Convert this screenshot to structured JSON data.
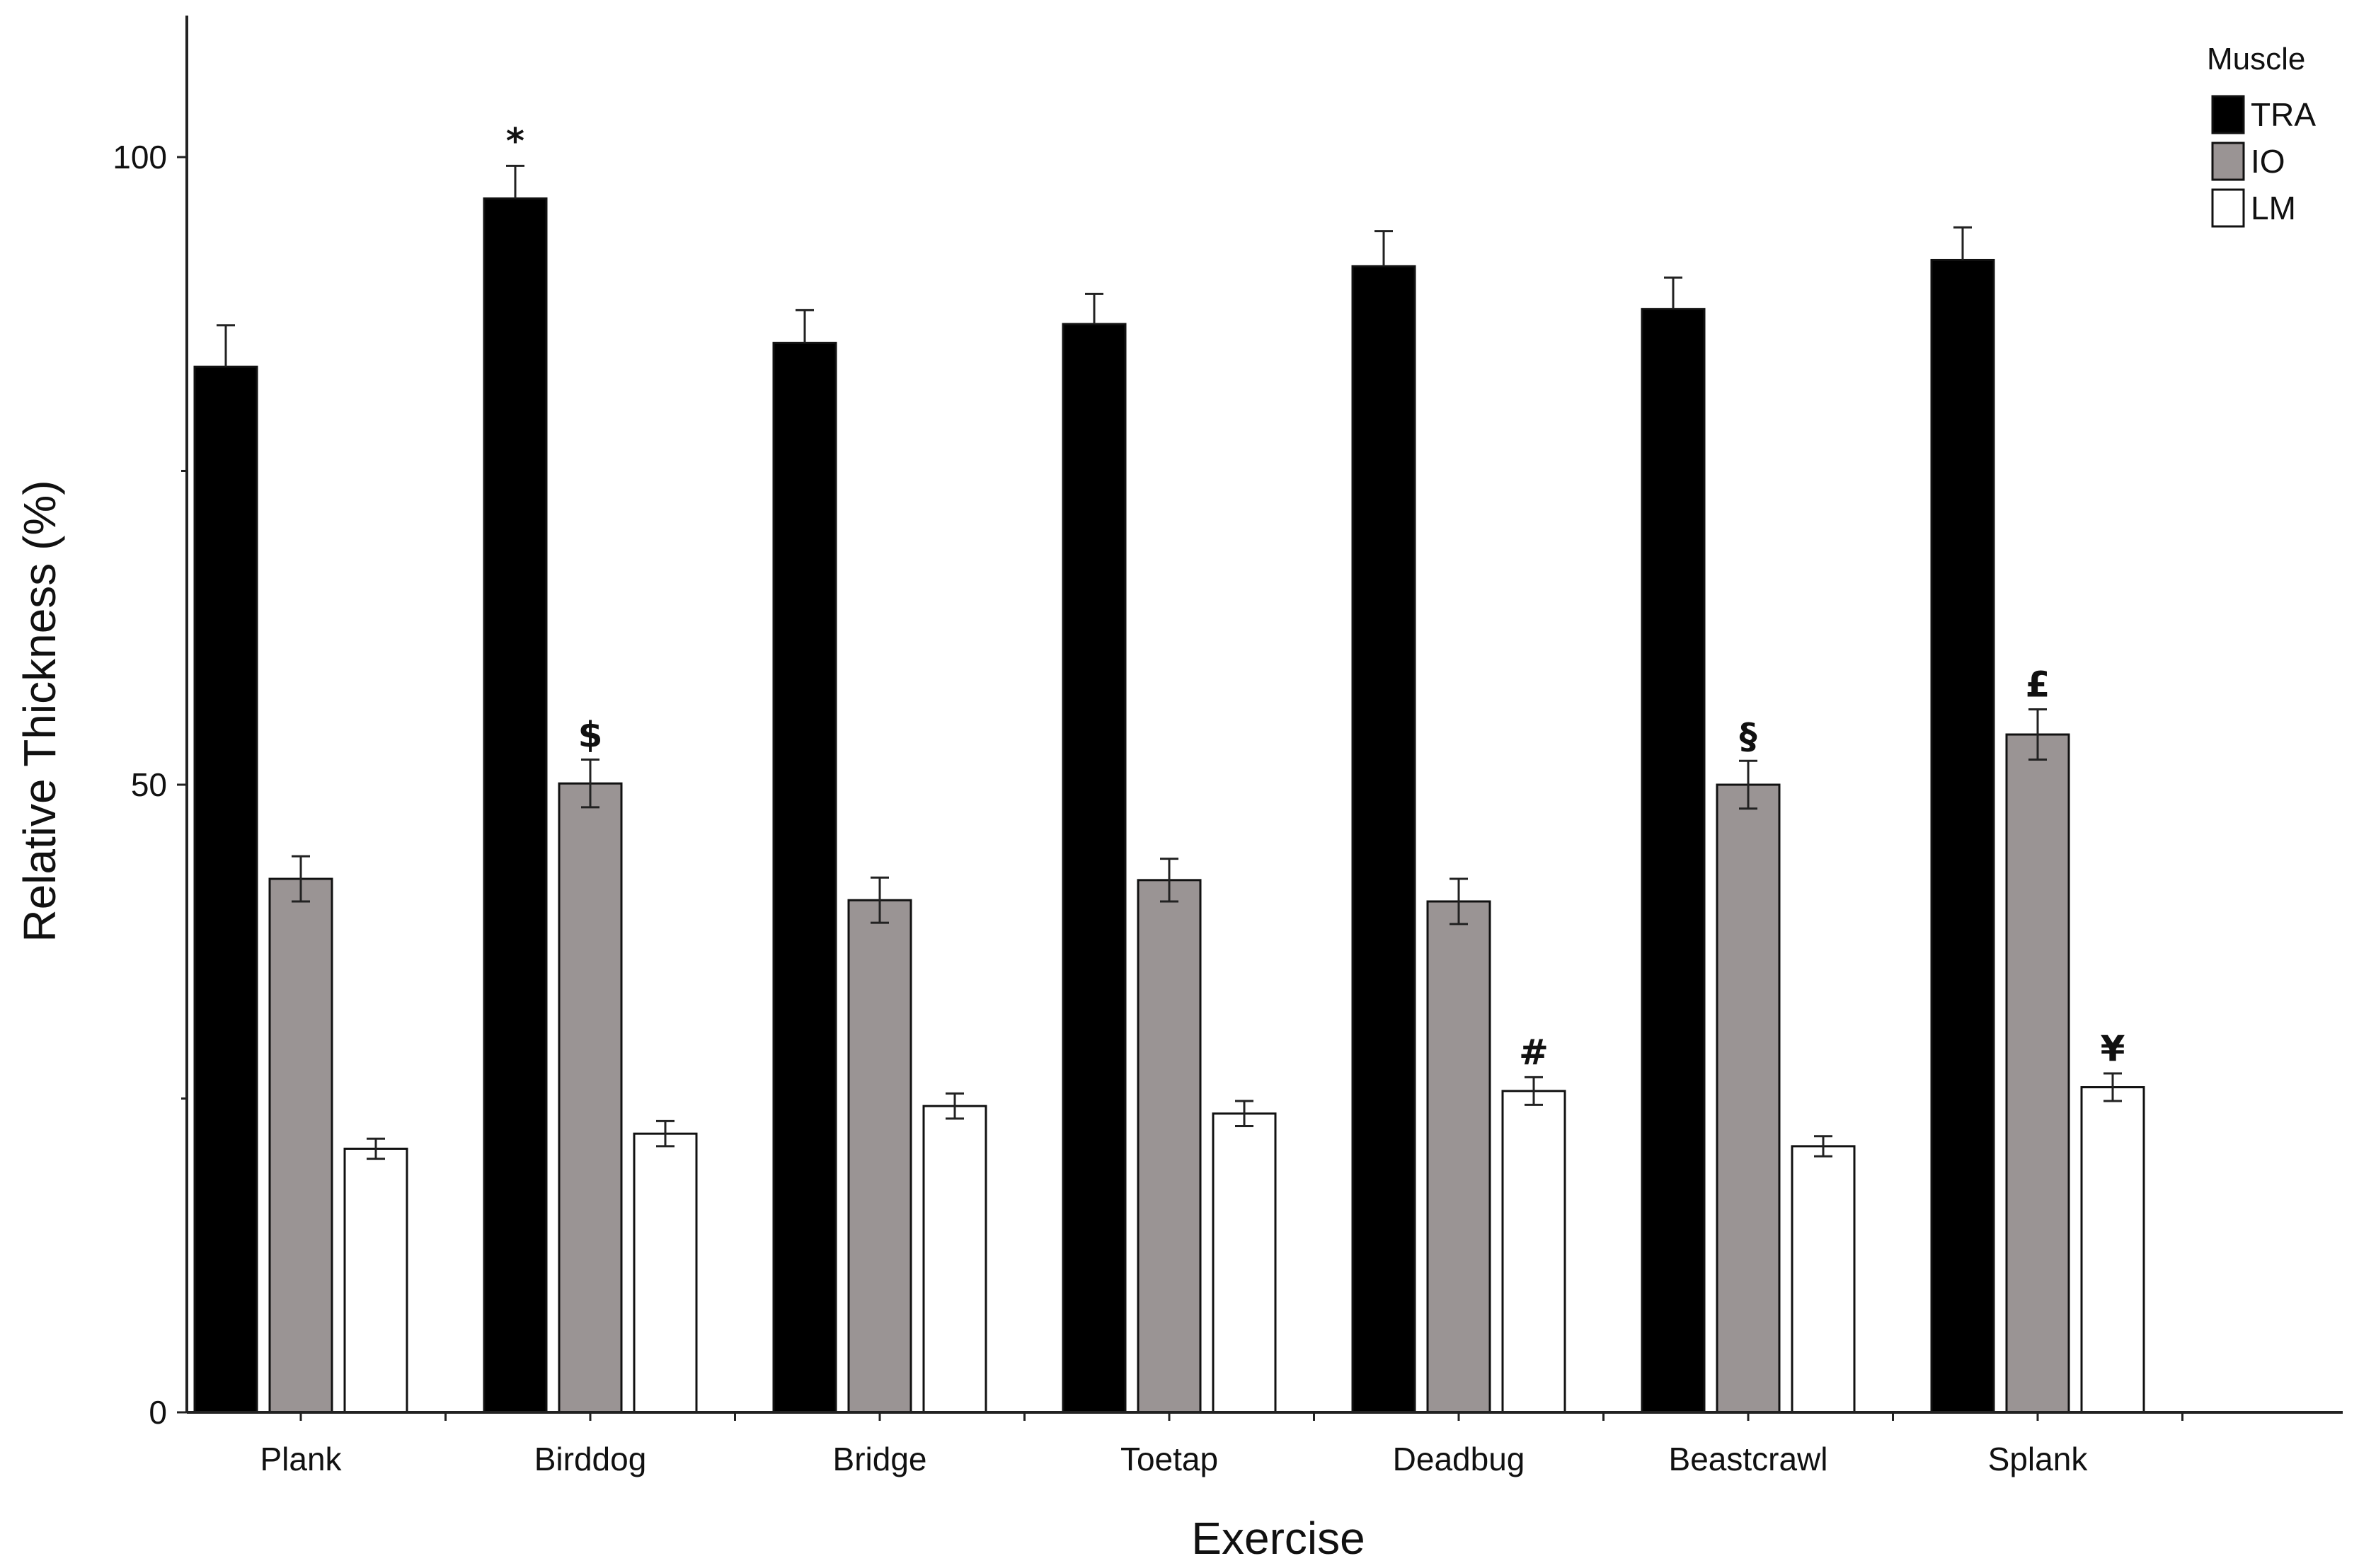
{
  "chart_data": {
    "type": "bar",
    "title": "",
    "xlabel": "Exercise",
    "ylabel": "Relative Thickness (%)",
    "ylim": [
      0,
      110
    ],
    "yticks": [
      0,
      50,
      100
    ],
    "categories": [
      "Plank",
      "Birddog",
      "Bridge",
      "Toetap",
      "Deadbug",
      "Beastcrawl",
      "Splank"
    ],
    "legend": {
      "title": "Muscle",
      "position": "top-right"
    },
    "series": [
      {
        "name": "TRA",
        "color": "#000000",
        "values": [
          83.3,
          96.7,
          85.2,
          86.7,
          91.3,
          87.9,
          91.8
        ],
        "errors": [
          3.3,
          2.6,
          2.6,
          2.4,
          2.8,
          2.5,
          2.6
        ]
      },
      {
        "name": "IO",
        "color": "#9a9494",
        "values": [
          42.5,
          50.1,
          40.8,
          42.4,
          40.7,
          50.0,
          54.0
        ],
        "errors": [
          1.8,
          1.9,
          1.8,
          1.7,
          1.8,
          1.9,
          2.0
        ]
      },
      {
        "name": "LM",
        "color": "#ffffff",
        "values": [
          21.0,
          22.2,
          24.4,
          23.8,
          25.6,
          21.2,
          25.9
        ],
        "errors": [
          0.8,
          1.0,
          1.0,
          1.0,
          1.1,
          0.8,
          1.1
        ]
      }
    ],
    "annotations": [
      {
        "text": "*",
        "category": "Birddog",
        "series": "TRA"
      },
      {
        "text": "$",
        "category": "Birddog",
        "series": "IO"
      },
      {
        "text": "#",
        "category": "Deadbug",
        "series": "LM"
      },
      {
        "text": "§",
        "category": "Beastcrawl",
        "series": "IO"
      },
      {
        "text": "£",
        "category": "Splank",
        "series": "IO"
      },
      {
        "text": "¥",
        "category": "Splank",
        "series": "LM"
      }
    ]
  }
}
